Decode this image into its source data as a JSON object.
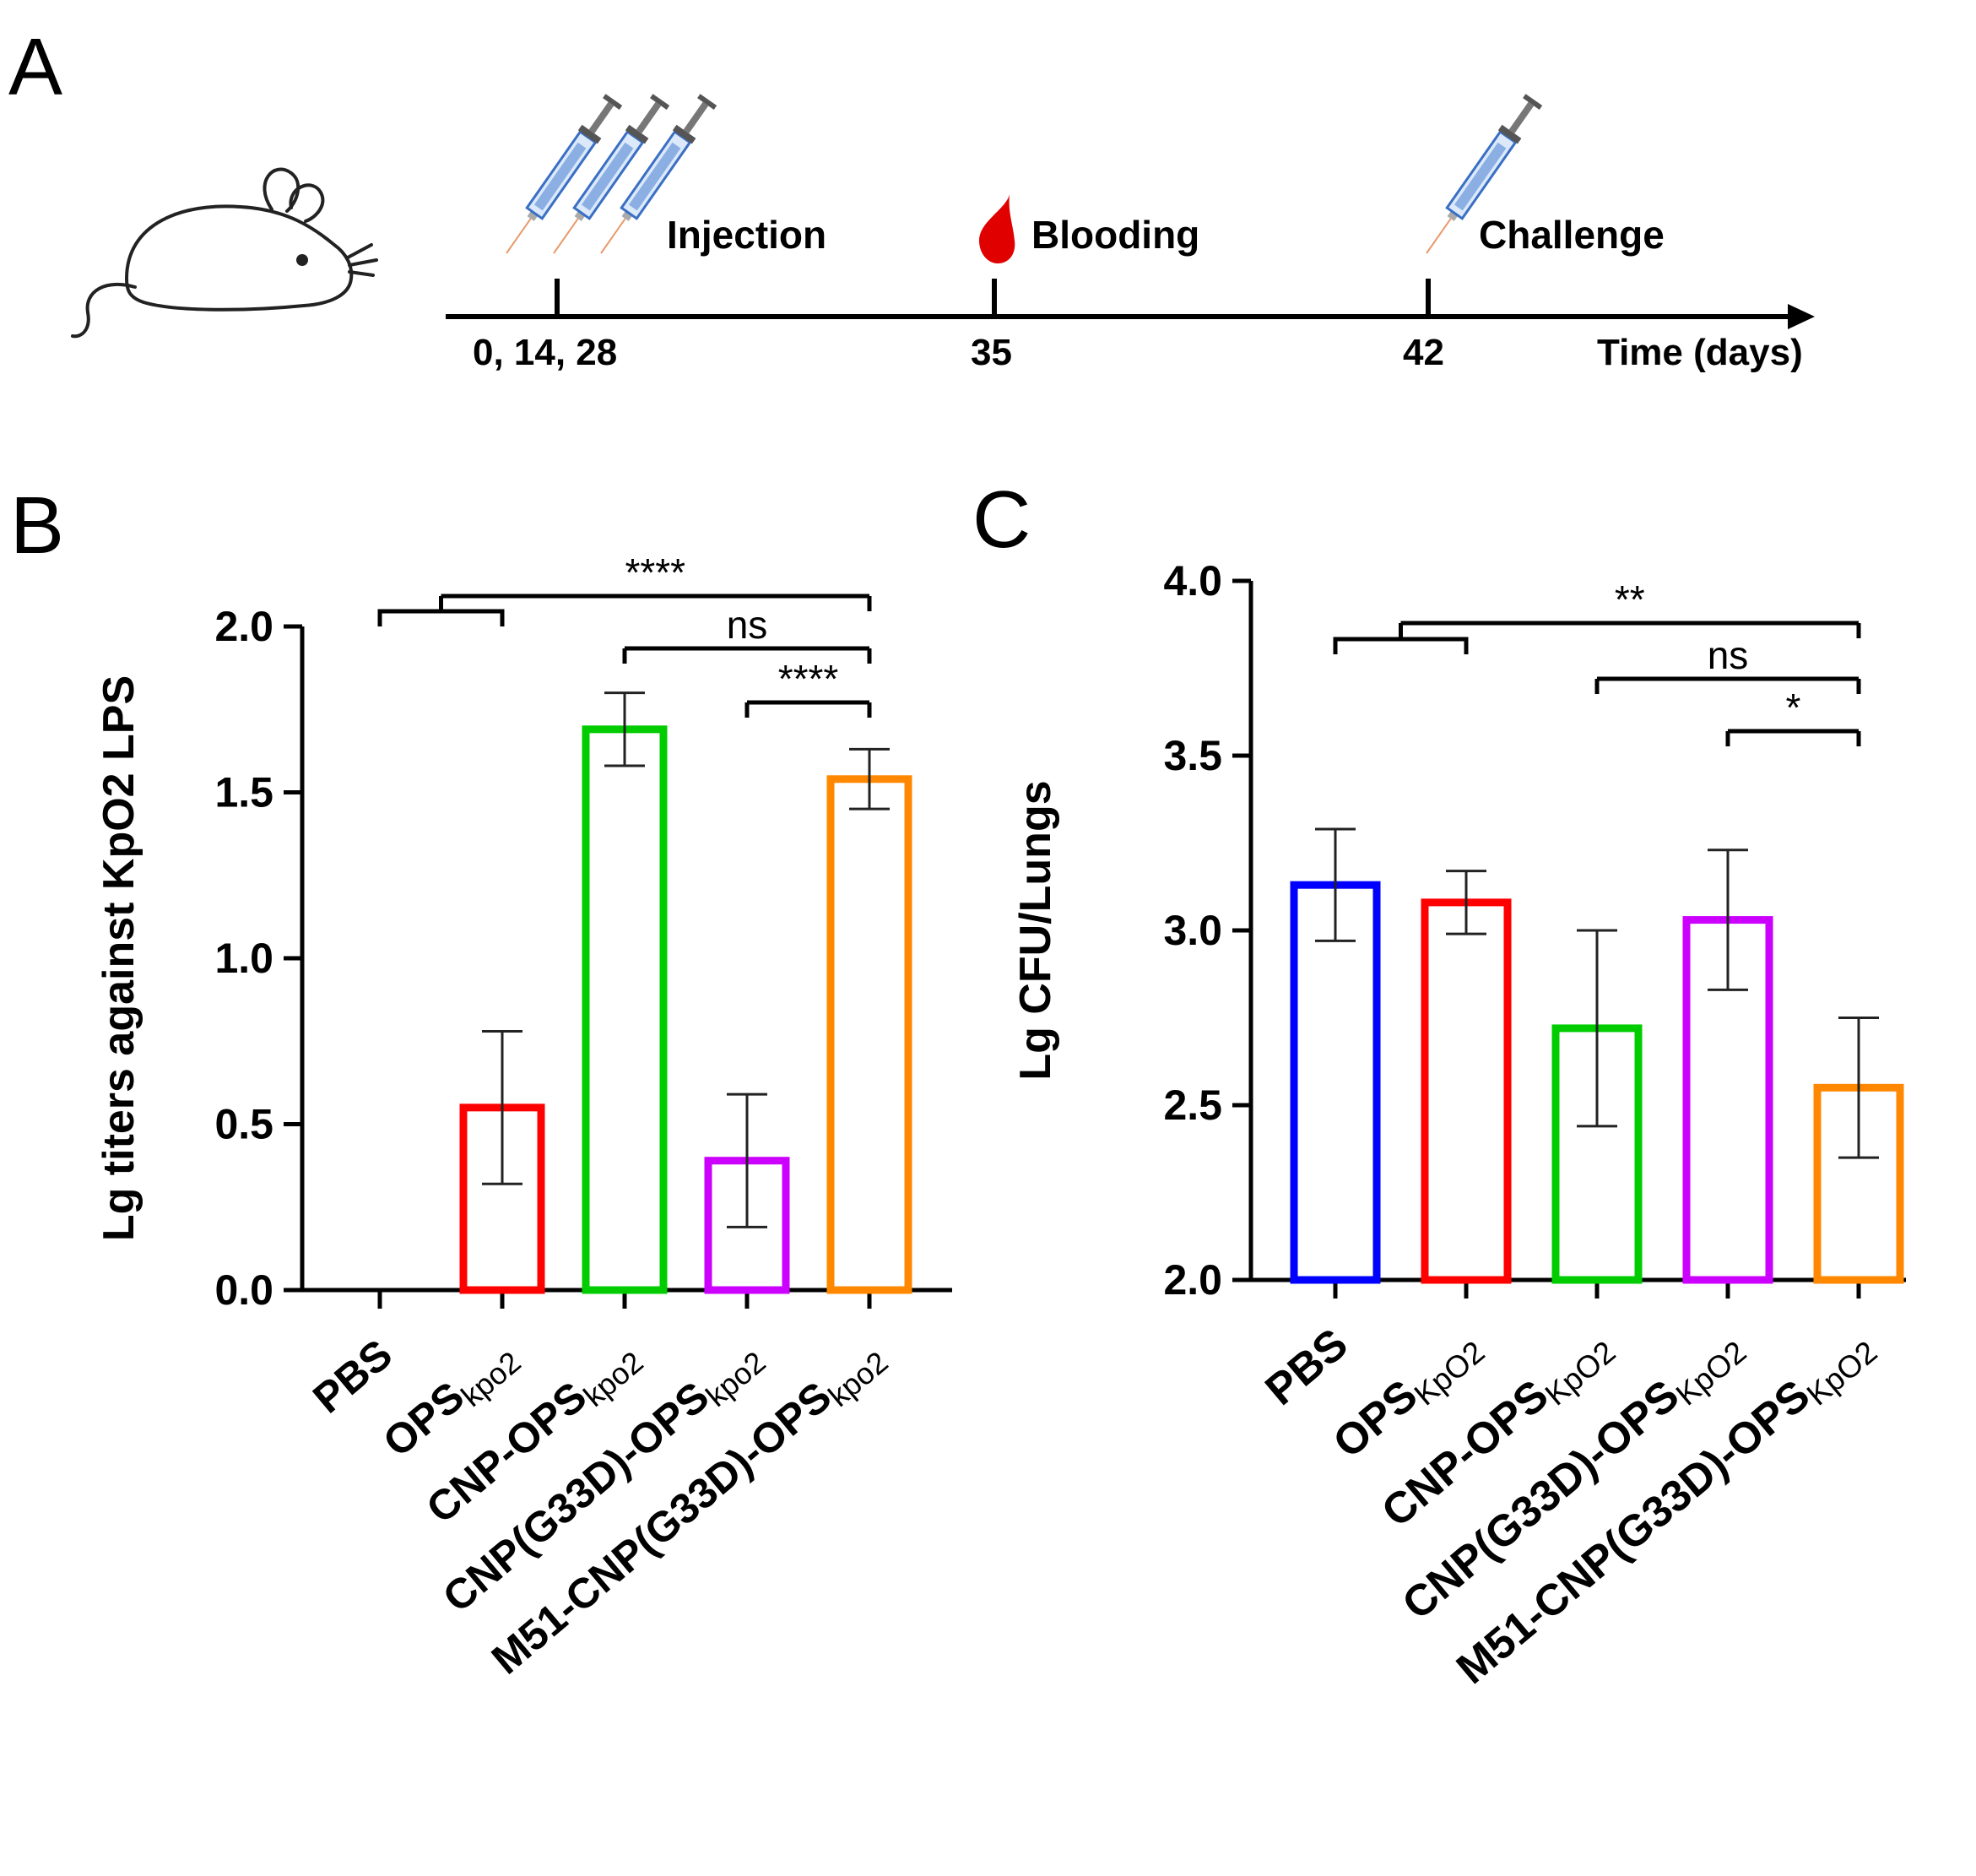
{
  "panels": {
    "a": "A",
    "b": "B",
    "c": "C"
  },
  "timeline": {
    "events": [
      {
        "label": "Injection",
        "day_label": "0, 14, 28",
        "icon": "syringe-icon"
      },
      {
        "label": "Blooding",
        "day_label": "35",
        "icon": "blood-drop-icon"
      },
      {
        "label": "Challenge",
        "day_label": "42",
        "icon": "syringe-icon"
      }
    ],
    "axis_label": "Time (days)",
    "subject_icon": "mouse-icon"
  },
  "colors": {
    "PBS": "#0000ff",
    "OPS": "#ff0000",
    "CNP-OPS": "#00cc00",
    "CNP(G33D)-OPS": "#cc00ff",
    "M51-CNP(G33D)-OPS": "#ff8800",
    "blood": "#e00000"
  },
  "chart_data": [
    {
      "type": "bar",
      "ylabel": "Lg titers against KpO2 LPS",
      "ylim": [
        0,
        2.0
      ],
      "yticks": [
        "0.0",
        "0.5",
        "1.0",
        "1.5",
        "2.0"
      ],
      "categories": [
        {
          "main": "PBS",
          "sub": ""
        },
        {
          "main": "OPS",
          "sub": "kpo2"
        },
        {
          "main": "CNP-OPS",
          "sub": "kpo2"
        },
        {
          "main": "CNP(G33D)-OPS",
          "sub": "kpo2"
        },
        {
          "main": "M51-CNP(G33D)-OPS",
          "sub": "kpo2"
        }
      ],
      "values": [
        0,
        0.55,
        1.69,
        0.39,
        1.54
      ],
      "errors": [
        0,
        0.23,
        0.11,
        0.2,
        0.09
      ],
      "significance": [
        {
          "from": [
            0,
            1
          ],
          "to": 4,
          "label": "****"
        },
        {
          "from": 2,
          "to": 4,
          "label": "ns"
        },
        {
          "from": 3,
          "to": 4,
          "label": "****"
        }
      ]
    },
    {
      "type": "bar",
      "ylabel": "Lg CFU/Lungs",
      "ylim": [
        2.0,
        4.0
      ],
      "yticks": [
        "2.0",
        "2.5",
        "3.0",
        "3.5",
        "4.0"
      ],
      "categories": [
        {
          "main": "PBS",
          "sub": ""
        },
        {
          "main": "OPS",
          "sub": "KpO2"
        },
        {
          "main": "CNP-OPS",
          "sub": "KpO2"
        },
        {
          "main": "CNP(G33D)-OPS",
          "sub": "KpO2"
        },
        {
          "main": "M51-CNP(G33D)-OPS",
          "sub": "KpO2"
        }
      ],
      "values": [
        3.13,
        3.08,
        2.72,
        3.03,
        2.55
      ],
      "errors": [
        0.16,
        0.09,
        0.28,
        0.2,
        0.2
      ],
      "significance": [
        {
          "from": [
            0,
            1
          ],
          "to": 4,
          "label": "**"
        },
        {
          "from": 2,
          "to": 4,
          "label": "ns"
        },
        {
          "from": 3,
          "to": 4,
          "label": "*"
        }
      ]
    }
  ]
}
